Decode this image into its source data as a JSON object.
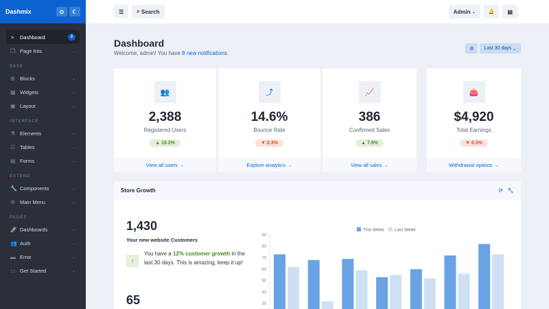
{
  "brand": {
    "name": "Dashmix"
  },
  "sidebar": {
    "items": [
      {
        "label": "Dashboard",
        "icon": "➤",
        "badge": "8",
        "active": true
      },
      {
        "label": "Page Kits",
        "icon": "❐"
      },
      {
        "heading": "BASE"
      },
      {
        "label": "Blocks",
        "icon": "⊞"
      },
      {
        "label": "Widgets",
        "icon": "▦"
      },
      {
        "label": "Layout",
        "icon": "▣"
      },
      {
        "heading": "INTERFACE"
      },
      {
        "label": "Elements",
        "icon": "⚗"
      },
      {
        "label": "Tables",
        "icon": "☷"
      },
      {
        "label": "Forms",
        "icon": "▤"
      },
      {
        "heading": "EXTEND"
      },
      {
        "label": "Components",
        "icon": "🔧"
      },
      {
        "label": "Main Menu",
        "icon": "⚙"
      },
      {
        "heading": "PAGES"
      },
      {
        "label": "Dashboards",
        "icon": "🚀"
      },
      {
        "label": "Auth",
        "icon": "👥"
      },
      {
        "label": "Error",
        "icon": "▬"
      },
      {
        "label": "Get Started",
        "icon": "▭"
      }
    ]
  },
  "topbar": {
    "menu_icon": "☰",
    "search_label": "Search",
    "user_label": "Admin",
    "bell_icon": "🔔",
    "panel_icon": "▤"
  },
  "header": {
    "title": "Dashboard",
    "welcome_prefix": "Welcome, admin! You have ",
    "welcome_link": "8 new notifications",
    "welcome_suffix": ".",
    "range_label": "Last 30 days"
  },
  "cards": [
    {
      "icon": "👥",
      "value": "2,388",
      "label": "Registered Users",
      "change": "▲ 19.2%",
      "trend": "up",
      "link": "View all users →"
    },
    {
      "icon": "⤴",
      "value": "14.6%",
      "label": "Bounce Rate",
      "change": "▼ 2.3%",
      "trend": "down",
      "link": "Explore analytics →"
    },
    {
      "icon": "📈",
      "value": "386",
      "label": "Confirmed Sales",
      "change": "▲ 7.9%",
      "trend": "up",
      "link": "View all sales →"
    },
    {
      "icon": "👛",
      "value": "$4,920",
      "label": "Total Earnings",
      "change": "▼ 0.3%",
      "trend": "down",
      "link": "Withdrawal options →"
    }
  ],
  "growth": {
    "title": "Store Growth",
    "customers": "1,430",
    "customers_label": "Your new website Customers",
    "msg_pre": "You have a ",
    "msg_hl": "12% customer growth",
    "msg_post": " in the last 30 days. This is amazing, keep it up!",
    "second_value": "65"
  },
  "colors": {
    "accent": "#0c63cf",
    "this_week": "#6aa3e3",
    "last_week": "#cfe0f5"
  },
  "chart_data": {
    "type": "bar",
    "series": [
      {
        "name": "This Week",
        "values": [
          73,
          68,
          69,
          53,
          60,
          72,
          82
        ]
      },
      {
        "name": "Last Week",
        "values": [
          62,
          32,
          59,
          55,
          52,
          56,
          73
        ]
      }
    ],
    "ylim": [
      0,
      90
    ],
    "yticks": [
      30,
      40,
      50,
      60,
      70,
      80,
      90
    ],
    "legend": "top",
    "grid": false
  }
}
